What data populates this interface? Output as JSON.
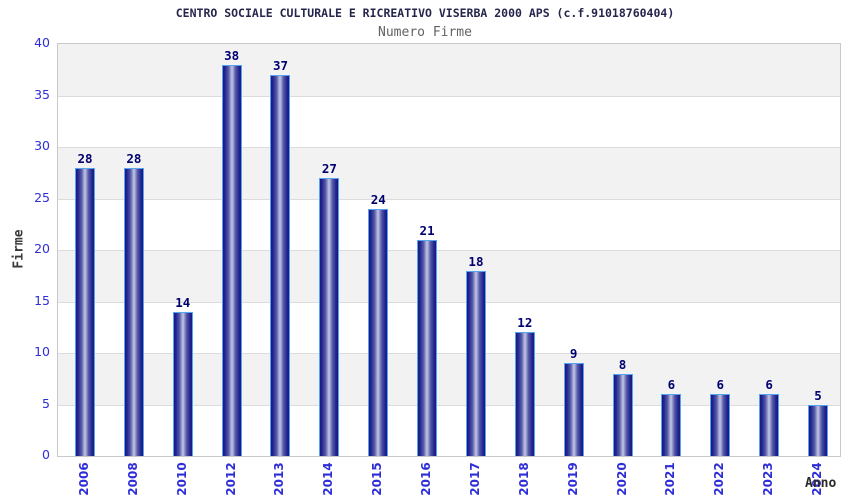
{
  "header": {
    "title": "CENTRO SOCIALE CULTURALE E RICREATIVO VISERBA 2000 APS (c.f.91018760404)",
    "subtitle": "Numero Firme"
  },
  "chart_data": {
    "type": "bar",
    "title": "CENTRO SOCIALE CULTURALE E RICREATIVO VISERBA 2000 APS (c.f.91018760404)",
    "subtitle": "Numero Firme",
    "categories": [
      "2006",
      "2008",
      "2010",
      "2012",
      "2013",
      "2014",
      "2015",
      "2016",
      "2017",
      "2018",
      "2019",
      "2020",
      "2021",
      "2022",
      "2023",
      "2024"
    ],
    "values": [
      28,
      28,
      14,
      38,
      37,
      27,
      24,
      21,
      18,
      12,
      9,
      8,
      6,
      6,
      6,
      5
    ],
    "xlabel": "Anno",
    "ylabel": "Firme",
    "ylim": [
      0,
      40
    ],
    "ytick_step": 5,
    "yticks": [
      0,
      5,
      10,
      15,
      20,
      25,
      30,
      35,
      40
    ],
    "grid": "horizontal-bands",
    "legend_position": "none",
    "colors": {
      "title": "#26264d",
      "subtitle": "#636363",
      "tick_label": "#2e2ed8",
      "value_label": "#000070",
      "axis_label": "#3a3a3a",
      "bar_dark": "#191980",
      "bar_light": "#c3c7e4",
      "bar_outline": "#55a4f0",
      "band_gray": "#f2f2f2",
      "grid_line": "#dcdcdc",
      "plot_border": "#c9c9c9"
    }
  }
}
